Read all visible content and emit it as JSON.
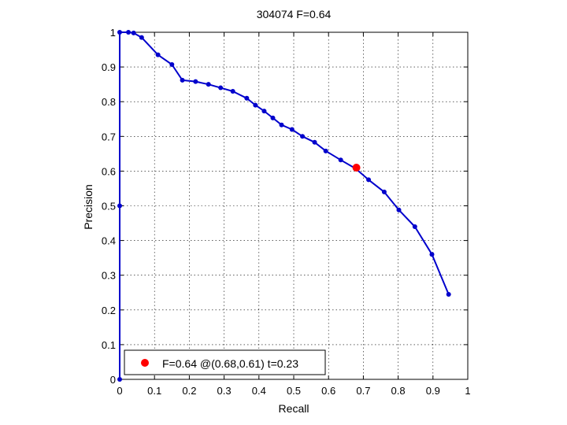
{
  "chart_data": {
    "type": "line",
    "title": "304074 F=0.64",
    "xlabel": "Recall",
    "ylabel": "Precision",
    "xlim": [
      0,
      1
    ],
    "ylim": [
      0,
      1
    ],
    "xticks": [
      "0",
      "0.1",
      "0.2",
      "0.3",
      "0.4",
      "0.5",
      "0.6",
      "0.7",
      "0.8",
      "0.9",
      "1"
    ],
    "yticks": [
      "0",
      "0.1",
      "0.2",
      "0.3",
      "0.4",
      "0.5",
      "0.6",
      "0.7",
      "0.8",
      "0.9",
      "1"
    ],
    "grid": true,
    "legend_position": "bottom-left",
    "series": [
      {
        "color": "#0000cc",
        "x": [
          0.0,
          0.0,
          0.0,
          0.025,
          0.04,
          0.063,
          0.11,
          0.15,
          0.18,
          0.218,
          0.255,
          0.29,
          0.325,
          0.365,
          0.39,
          0.415,
          0.44,
          0.465,
          0.495,
          0.525,
          0.56,
          0.592,
          0.635,
          0.678,
          0.715,
          0.76,
          0.802,
          0.848,
          0.897,
          0.945
        ],
        "y": [
          0.0,
          0.5,
          1.0,
          1.0,
          0.998,
          0.985,
          0.935,
          0.907,
          0.862,
          0.858,
          0.85,
          0.84,
          0.83,
          0.81,
          0.79,
          0.773,
          0.753,
          0.733,
          0.72,
          0.7,
          0.683,
          0.658,
          0.632,
          0.607,
          0.575,
          0.54,
          0.488,
          0.44,
          0.36,
          0.245
        ]
      }
    ],
    "highlight": {
      "x": 0.68,
      "y": 0.61,
      "color": "#ff0000",
      "label": "F=0.64 @(0.68,0.61) t=0.23"
    }
  }
}
